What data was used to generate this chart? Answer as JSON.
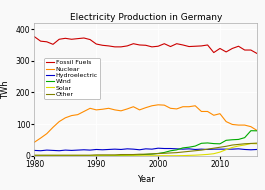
{
  "title": "Electricity Production in Germany",
  "xlabel": "Year",
  "ylabel": "TWh",
  "xlim": [
    1980,
    2016
  ],
  "ylim": [
    0,
    420
  ],
  "yticks": [
    0,
    100,
    200,
    300,
    400
  ],
  "xticks": [
    1980,
    1990,
    2000,
    2010
  ],
  "background_color": "#f9f9f9",
  "series": {
    "Fossil Fuels": {
      "color": "#cc0000",
      "years": [
        1980,
        1981,
        1982,
        1983,
        1984,
        1985,
        1986,
        1987,
        1988,
        1989,
        1990,
        1991,
        1992,
        1993,
        1994,
        1995,
        1996,
        1997,
        1998,
        1999,
        2000,
        2001,
        2002,
        2003,
        2004,
        2005,
        2006,
        2007,
        2008,
        2009,
        2010,
        2011,
        2012,
        2013,
        2014,
        2015,
        2016
      ],
      "values": [
        376,
        362,
        360,
        352,
        368,
        371,
        368,
        370,
        372,
        367,
        353,
        349,
        347,
        344,
        344,
        347,
        354,
        350,
        349,
        344,
        346,
        354,
        345,
        354,
        350,
        345,
        346,
        347,
        350,
        326,
        339,
        328,
        339,
        346,
        334,
        334,
        323
      ]
    },
    "Nuclear": {
      "color": "#ff8c00",
      "years": [
        1980,
        1981,
        1982,
        1983,
        1984,
        1985,
        1986,
        1987,
        1988,
        1989,
        1990,
        1991,
        1992,
        1993,
        1994,
        1995,
        1996,
        1997,
        1998,
        1999,
        2000,
        2001,
        2002,
        2003,
        2004,
        2005,
        2006,
        2007,
        2008,
        2009,
        2010,
        2011,
        2012,
        2013,
        2014,
        2015,
        2016
      ],
      "values": [
        43,
        56,
        70,
        90,
        108,
        120,
        127,
        130,
        140,
        150,
        145,
        147,
        150,
        145,
        142,
        148,
        155,
        145,
        152,
        158,
        161,
        160,
        150,
        148,
        155,
        155,
        158,
        140,
        140,
        128,
        133,
        108,
        99,
        97,
        97,
        92,
        80
      ]
    },
    "Hydroelectric": {
      "color": "#0000cc",
      "years": [
        1980,
        1981,
        1982,
        1983,
        1984,
        1985,
        1986,
        1987,
        1988,
        1989,
        1990,
        1991,
        1992,
        1993,
        1994,
        1995,
        1996,
        1997,
        1998,
        1999,
        2000,
        2001,
        2002,
        2003,
        2004,
        2005,
        2006,
        2007,
        2008,
        2009,
        2010,
        2011,
        2012,
        2013,
        2014,
        2015,
        2016
      ],
      "values": [
        17,
        16,
        18,
        17,
        16,
        18,
        17,
        18,
        19,
        18,
        20,
        19,
        20,
        21,
        20,
        22,
        21,
        19,
        22,
        21,
        24,
        23,
        23,
        22,
        21,
        22,
        20,
        21,
        20,
        21,
        21,
        21,
        21,
        22,
        20,
        19,
        20
      ]
    },
    "Wind": {
      "color": "#00aa00",
      "years": [
        1980,
        1981,
        1982,
        1983,
        1984,
        1985,
        1986,
        1987,
        1988,
        1989,
        1990,
        1991,
        1992,
        1993,
        1994,
        1995,
        1996,
        1997,
        1998,
        1999,
        2000,
        2001,
        2002,
        2003,
        2004,
        2005,
        2006,
        2007,
        2008,
        2009,
        2010,
        2011,
        2012,
        2013,
        2014,
        2015,
        2016
      ],
      "values": [
        0,
        0,
        0,
        0,
        0,
        0,
        0,
        0,
        0,
        0,
        0.1,
        0.2,
        0.3,
        0.6,
        1.0,
        1.5,
        2.0,
        3.0,
        4.5,
        5.5,
        7.5,
        10.5,
        15.8,
        18.7,
        25.0,
        27.2,
        30.7,
        39.5,
        40.6,
        38.5,
        37.8,
        48.9,
        50.7,
        51.7,
        57.3,
        79.2,
        78.9
      ]
    },
    "Solar": {
      "color": "#dddd00",
      "years": [
        1980,
        1981,
        1982,
        1983,
        1984,
        1985,
        1986,
        1987,
        1988,
        1989,
        1990,
        1991,
        1992,
        1993,
        1994,
        1995,
        1996,
        1997,
        1998,
        1999,
        2000,
        2001,
        2002,
        2003,
        2004,
        2005,
        2006,
        2007,
        2008,
        2009,
        2010,
        2011,
        2012,
        2013,
        2014,
        2015,
        2016
      ],
      "values": [
        0,
        0,
        0,
        0,
        0,
        0,
        0,
        0,
        0,
        0,
        0,
        0,
        0,
        0,
        0,
        0,
        0,
        0,
        0,
        0.1,
        0.2,
        0.3,
        0.2,
        0.3,
        0.6,
        1.3,
        2.0,
        3.1,
        4.4,
        6.6,
        11.7,
        19.6,
        26.4,
        31.0,
        34.2,
        38.7,
        38.1
      ]
    },
    "Other": {
      "color": "#808000",
      "years": [
        1980,
        1981,
        1982,
        1983,
        1984,
        1985,
        1986,
        1987,
        1988,
        1989,
        1990,
        1991,
        1992,
        1993,
        1994,
        1995,
        1996,
        1997,
        1998,
        1999,
        2000,
        2001,
        2002,
        2003,
        2004,
        2005,
        2006,
        2007,
        2008,
        2009,
        2010,
        2011,
        2012,
        2013,
        2014,
        2015,
        2016
      ],
      "values": [
        2,
        2,
        2,
        2,
        2,
        2,
        2,
        2,
        2,
        2,
        3,
        3,
        3,
        3,
        4,
        4,
        4,
        5,
        5,
        6,
        7,
        8,
        9,
        10,
        12,
        14,
        16,
        18,
        21,
        24,
        27,
        30,
        34,
        36,
        38,
        39,
        40
      ]
    }
  }
}
